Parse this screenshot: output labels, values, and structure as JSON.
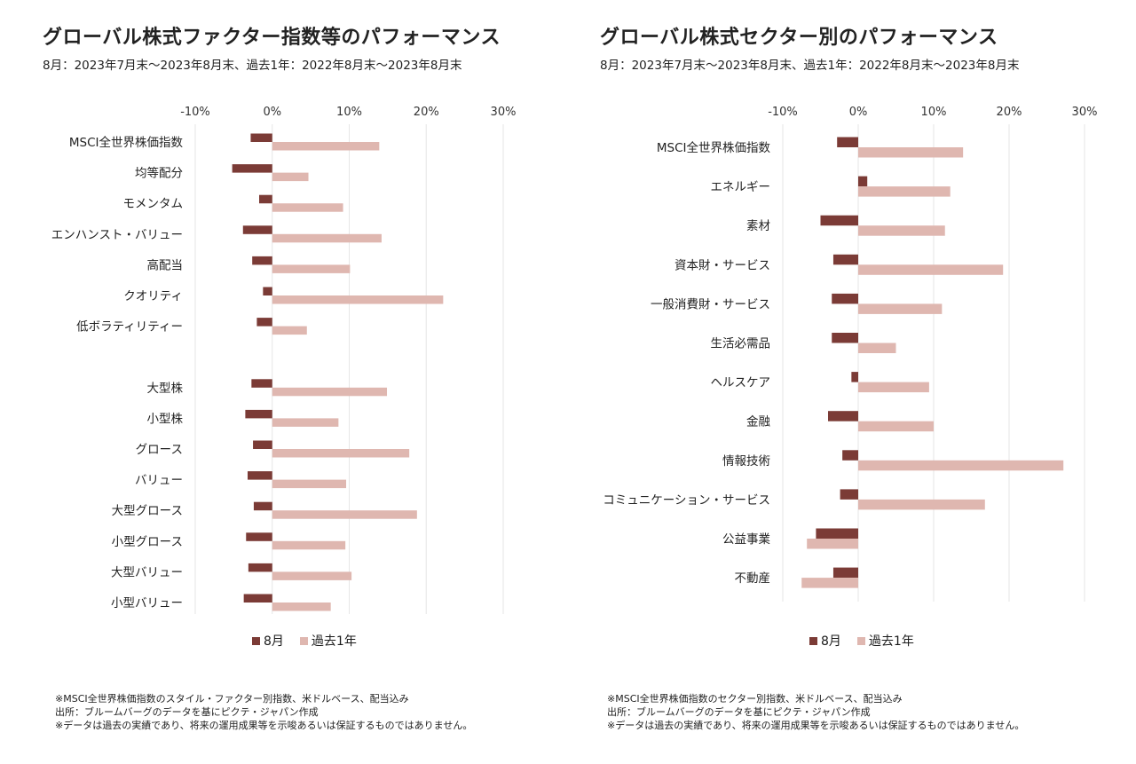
{
  "left": {
    "title": "グローバル株式ファクター指数等のパフォーマンス",
    "subtitle": "8月：2023年7月末～2023年8月末、過去1年：2022年8月末～2023年8月末",
    "notes": [
      "※MSCI全世界株価指数のスタイル・ファクター別指数、米ドルベース、配当込み",
      "出所：ブルームバーグのデータを基にピクテ・ジャパン作成",
      "※データは過去の実績であり、将来の運用成果等を示唆あるいは保証するものではありません。"
    ]
  },
  "right": {
    "title": "グローバル株式セクター別のパフォーマンス",
    "subtitle": "8月：2023年7月末～2023年8月末、過去1年：2022年8月末～2023年8月末",
    "notes": [
      "※MSCI全世界株価指数のセクター別指数、米ドルベース、配当込み",
      "出所：ブルームバーグのデータを基にピクテ・ジャパン作成",
      "※データは過去の実績であり、将来の運用成果等を示唆あるいは保証するものではありません。"
    ]
  },
  "colors": {
    "aug": "#7b3b36",
    "year": "#dfb7b0",
    "grid": "#e6e6e6"
  },
  "chart_data": [
    {
      "type": "bar",
      "orientation": "horizontal",
      "title": "グローバル株式ファクター指数等のパフォーマンス",
      "xlim": [
        -0.1,
        0.3
      ],
      "ticks": [
        -0.1,
        0,
        0.1,
        0.2,
        0.3
      ],
      "tick_labels": [
        "-10%",
        "0%",
        "10%",
        "20%",
        "30%"
      ],
      "grid": true,
      "legend": "bottom",
      "categories": [
        "MSCI全世界株価指数",
        "均等配分",
        "モメンタム",
        "エンハンスト・バリュー",
        "高配当",
        "クオリティ",
        "低ボラティリティー",
        "",
        "大型株",
        "小型株",
        "グロース",
        "バリュー",
        "大型グロース",
        "小型グロース",
        "大型バリュー",
        "小型バリュー"
      ],
      "series": [
        {
          "name": "8月",
          "values": [
            -0.028,
            -0.052,
            -0.017,
            -0.038,
            -0.026,
            -0.012,
            -0.02,
            null,
            -0.027,
            -0.035,
            -0.025,
            -0.032,
            -0.024,
            -0.034,
            -0.031,
            -0.037
          ]
        },
        {
          "name": "過去1年",
          "values": [
            0.139,
            0.047,
            0.092,
            0.142,
            0.101,
            0.222,
            0.045,
            null,
            0.149,
            0.086,
            0.178,
            0.096,
            0.188,
            0.095,
            0.103,
            0.076
          ]
        }
      ]
    },
    {
      "type": "bar",
      "orientation": "horizontal",
      "title": "グローバル株式セクター別のパフォーマンス",
      "xlim": [
        -0.1,
        0.3
      ],
      "ticks": [
        -0.1,
        0,
        0.1,
        0.2,
        0.3
      ],
      "tick_labels": [
        "-10%",
        "0%",
        "10%",
        "20%",
        "30%"
      ],
      "grid": true,
      "legend": "bottom",
      "categories": [
        "MSCI全世界株価指数",
        "エネルギー",
        "素材",
        "資本財・サービス",
        "一般消費財・サービス",
        "生活必需品",
        "ヘルスケア",
        "金融",
        "情報技術",
        "コミュニケーション・サービス",
        "公益事業",
        "不動産"
      ],
      "series": [
        {
          "name": "8月",
          "values": [
            -0.028,
            0.012,
            -0.05,
            -0.033,
            -0.035,
            -0.035,
            -0.009,
            -0.04,
            -0.021,
            -0.024,
            -0.056,
            -0.033
          ]
        },
        {
          "name": "過去1年",
          "values": [
            0.139,
            0.122,
            0.115,
            0.192,
            0.111,
            0.05,
            0.094,
            0.1,
            0.272,
            0.168,
            -0.068,
            -0.075
          ]
        }
      ]
    }
  ]
}
